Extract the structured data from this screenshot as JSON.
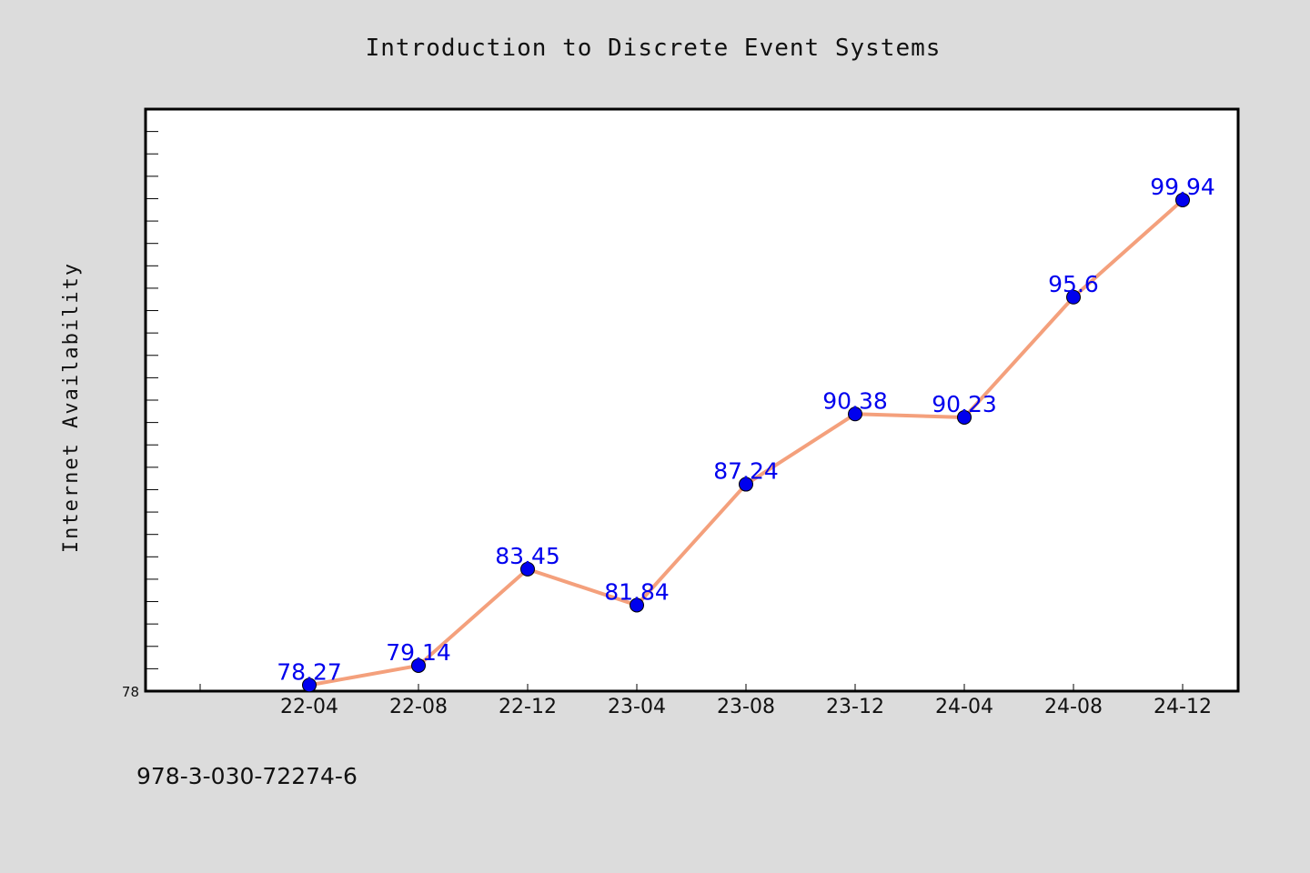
{
  "chart_data": {
    "type": "line",
    "title": "Introduction to Discrete Event Systems",
    "xlabel": "",
    "ylabel": "Internet Availability",
    "categories": [
      "22-04",
      "22-08",
      "22-12",
      "23-04",
      "23-08",
      "23-12",
      "24-04",
      "24-08",
      "24-12"
    ],
    "series": [
      {
        "values": [
          78.27,
          79.14,
          83.45,
          81.84,
          87.24,
          90.38,
          90.23,
          95.6,
          99.94
        ],
        "data_labels": [
          "78.27",
          "79.14",
          "83.45",
          "81.84",
          "87.24",
          "90.38",
          "90.23",
          "95.6",
          "99.94"
        ]
      }
    ],
    "y_tick_labels": [
      "78"
    ],
    "ylim": [
      78,
      104
    ],
    "grid": false,
    "line_color": "#f4a07c",
    "marker_color": "#0000ee",
    "label_color": "#0000ee"
  },
  "footer": {
    "text": "978-3-030-72274-6"
  }
}
